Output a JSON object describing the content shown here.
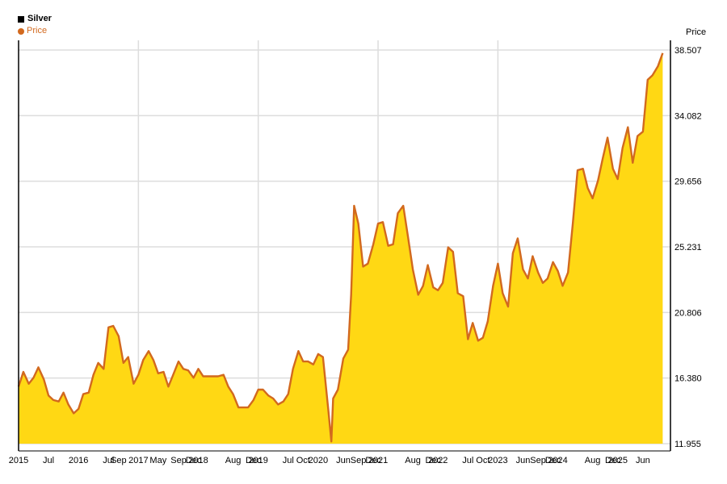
{
  "legend": {
    "title": "Silver",
    "series_label": "Price"
  },
  "colors": {
    "area_fill": "#ffd814",
    "line": "#d2691e",
    "grid": "#dddddd",
    "axis": "#000000"
  },
  "chart_data": {
    "type": "area",
    "title": "Silver",
    "ylabel": "Price",
    "grid": true,
    "legend_position": "top-left",
    "ylim": [
      11.955,
      38.507
    ],
    "xlim": [
      2015.0,
      2025.88
    ],
    "y_ticks": [
      "11.955",
      "16.380",
      "20.806",
      "25.231",
      "29.656",
      "34.082",
      "38.507"
    ],
    "x_ticks": [
      {
        "label": "2015",
        "x": 2015.0
      },
      {
        "label": "Jul",
        "x": 2015.5
      },
      {
        "label": "2016",
        "x": 2016.0
      },
      {
        "label": "Jul",
        "x": 2016.5
      },
      {
        "label": "Sep",
        "x": 2016.67
      },
      {
        "label": "2017",
        "x": 2017.0
      },
      {
        "label": "May",
        "x": 2017.33
      },
      {
        "label": "Sep",
        "x": 2017.67
      },
      {
        "label": "Dec",
        "x": 2017.92
      },
      {
        "label": "2018",
        "x": 2018.0
      },
      {
        "label": "Aug",
        "x": 2018.58
      },
      {
        "label": "Dec",
        "x": 2018.92
      },
      {
        "label": "2019",
        "x": 2019.0
      },
      {
        "label": "Jul",
        "x": 2019.5
      },
      {
        "label": "Oct",
        "x": 2019.75
      },
      {
        "label": "2020",
        "x": 2020.0
      },
      {
        "label": "Jun",
        "x": 2020.42
      },
      {
        "label": "Sep",
        "x": 2020.67
      },
      {
        "label": "Dec",
        "x": 2020.92
      },
      {
        "label": "2021",
        "x": 2021.0
      },
      {
        "label": "Aug",
        "x": 2021.58
      },
      {
        "label": "Dec",
        "x": 2021.92
      },
      {
        "label": "2022",
        "x": 2022.0
      },
      {
        "label": "Jul",
        "x": 2022.5
      },
      {
        "label": "Oct",
        "x": 2022.75
      },
      {
        "label": "2023",
        "x": 2023.0
      },
      {
        "label": "Jun",
        "x": 2023.42
      },
      {
        "label": "Sep",
        "x": 2023.67
      },
      {
        "label": "Dec",
        "x": 2023.92
      },
      {
        "label": "2024",
        "x": 2024.0
      },
      {
        "label": "Aug",
        "x": 2024.58
      },
      {
        "label": "Dec",
        "x": 2024.92
      },
      {
        "label": "2025",
        "x": 2025.0
      },
      {
        "label": "Jun",
        "x": 2025.42
      }
    ],
    "series": [
      {
        "name": "Price",
        "points": [
          [
            2015.0,
            15.8
          ],
          [
            2015.08,
            16.8
          ],
          [
            2015.17,
            16.0
          ],
          [
            2015.25,
            16.4
          ],
          [
            2015.33,
            17.1
          ],
          [
            2015.42,
            16.3
          ],
          [
            2015.5,
            15.2
          ],
          [
            2015.58,
            14.9
          ],
          [
            2015.67,
            14.8
          ],
          [
            2015.75,
            15.4
          ],
          [
            2015.83,
            14.6
          ],
          [
            2015.92,
            14.0
          ],
          [
            2016.0,
            14.3
          ],
          [
            2016.08,
            15.3
          ],
          [
            2016.17,
            15.4
          ],
          [
            2016.25,
            16.6
          ],
          [
            2016.33,
            17.4
          ],
          [
            2016.42,
            17.0
          ],
          [
            2016.5,
            19.8
          ],
          [
            2016.58,
            19.9
          ],
          [
            2016.67,
            19.2
          ],
          [
            2016.75,
            17.4
          ],
          [
            2016.83,
            17.8
          ],
          [
            2016.92,
            16.0
          ],
          [
            2017.0,
            16.6
          ],
          [
            2017.08,
            17.6
          ],
          [
            2017.17,
            18.2
          ],
          [
            2017.25,
            17.6
          ],
          [
            2017.33,
            16.7
          ],
          [
            2017.42,
            16.8
          ],
          [
            2017.5,
            15.8
          ],
          [
            2017.58,
            16.6
          ],
          [
            2017.67,
            17.5
          ],
          [
            2017.75,
            17.0
          ],
          [
            2017.83,
            16.9
          ],
          [
            2017.92,
            16.4
          ],
          [
            2018.0,
            17.0
          ],
          [
            2018.08,
            16.5
          ],
          [
            2018.17,
            16.5
          ],
          [
            2018.25,
            16.5
          ],
          [
            2018.33,
            16.5
          ],
          [
            2018.42,
            16.6
          ],
          [
            2018.5,
            15.8
          ],
          [
            2018.58,
            15.3
          ],
          [
            2018.67,
            14.4
          ],
          [
            2018.75,
            14.4
          ],
          [
            2018.83,
            14.4
          ],
          [
            2018.92,
            14.9
          ],
          [
            2019.0,
            15.6
          ],
          [
            2019.08,
            15.6
          ],
          [
            2019.17,
            15.2
          ],
          [
            2019.25,
            15.0
          ],
          [
            2019.33,
            14.6
          ],
          [
            2019.42,
            14.8
          ],
          [
            2019.5,
            15.3
          ],
          [
            2019.58,
            17.0
          ],
          [
            2019.67,
            18.2
          ],
          [
            2019.75,
            17.5
          ],
          [
            2019.83,
            17.5
          ],
          [
            2019.92,
            17.3
          ],
          [
            2020.0,
            18.0
          ],
          [
            2020.08,
            17.8
          ],
          [
            2020.17,
            14.2
          ],
          [
            2020.22,
            12.1
          ],
          [
            2020.25,
            15.0
          ],
          [
            2020.33,
            15.6
          ],
          [
            2020.42,
            17.7
          ],
          [
            2020.5,
            18.3
          ],
          [
            2020.55,
            22.0
          ],
          [
            2020.6,
            28.0
          ],
          [
            2020.67,
            26.8
          ],
          [
            2020.75,
            23.9
          ],
          [
            2020.83,
            24.1
          ],
          [
            2020.92,
            25.4
          ],
          [
            2021.0,
            26.8
          ],
          [
            2021.08,
            26.9
          ],
          [
            2021.17,
            25.3
          ],
          [
            2021.25,
            25.4
          ],
          [
            2021.33,
            27.5
          ],
          [
            2021.42,
            28.0
          ],
          [
            2021.5,
            25.9
          ],
          [
            2021.58,
            23.7
          ],
          [
            2021.67,
            22.0
          ],
          [
            2021.75,
            22.6
          ],
          [
            2021.83,
            24.0
          ],
          [
            2021.92,
            22.5
          ],
          [
            2022.0,
            22.3
          ],
          [
            2022.08,
            22.8
          ],
          [
            2022.17,
            25.2
          ],
          [
            2022.25,
            24.9
          ],
          [
            2022.33,
            22.1
          ],
          [
            2022.42,
            21.9
          ],
          [
            2022.5,
            19.0
          ],
          [
            2022.58,
            20.1
          ],
          [
            2022.67,
            18.9
          ],
          [
            2022.75,
            19.1
          ],
          [
            2022.83,
            20.2
          ],
          [
            2022.92,
            22.6
          ],
          [
            2023.0,
            24.1
          ],
          [
            2023.08,
            22.1
          ],
          [
            2023.17,
            21.2
          ],
          [
            2023.25,
            24.8
          ],
          [
            2023.33,
            25.8
          ],
          [
            2023.42,
            23.7
          ],
          [
            2023.5,
            23.1
          ],
          [
            2023.58,
            24.6
          ],
          [
            2023.67,
            23.5
          ],
          [
            2023.75,
            22.8
          ],
          [
            2023.83,
            23.1
          ],
          [
            2023.92,
            24.2
          ],
          [
            2024.0,
            23.6
          ],
          [
            2024.08,
            22.6
          ],
          [
            2024.17,
            23.5
          ],
          [
            2024.25,
            26.8
          ],
          [
            2024.33,
            30.4
          ],
          [
            2024.42,
            30.5
          ],
          [
            2024.5,
            29.2
          ],
          [
            2024.58,
            28.5
          ],
          [
            2024.67,
            29.7
          ],
          [
            2024.75,
            31.2
          ],
          [
            2024.83,
            32.6
          ],
          [
            2024.92,
            30.5
          ],
          [
            2025.0,
            29.8
          ],
          [
            2025.08,
            31.9
          ],
          [
            2025.17,
            33.3
          ],
          [
            2025.25,
            30.9
          ],
          [
            2025.33,
            32.7
          ],
          [
            2025.42,
            33.0
          ],
          [
            2025.5,
            36.5
          ],
          [
            2025.58,
            36.8
          ],
          [
            2025.67,
            37.4
          ],
          [
            2025.75,
            38.3
          ]
        ]
      }
    ]
  }
}
